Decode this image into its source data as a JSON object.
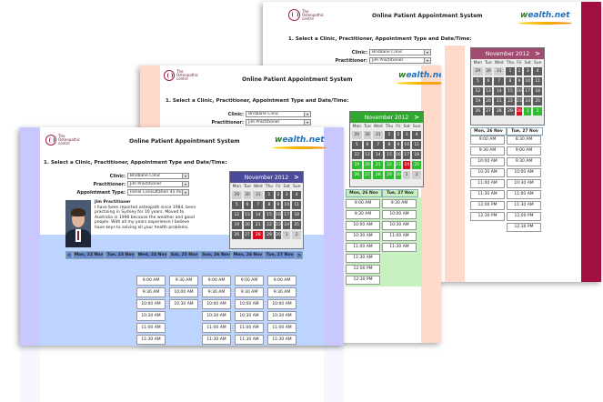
{
  "app": {
    "logo_line1": "The",
    "logo_line2": "Osteopathic",
    "logo_line3": "centre",
    "title": "Online Patient Appointment System",
    "brand_w": "w",
    "brand_rest": "ealth.net",
    "heading": "1. Select a Clinic, Practitioner, Appointment Type and Date/Time:"
  },
  "form": {
    "clinic_label": "Clinic:",
    "clinic_value": "Brisbane Clinic",
    "practitioner_label": "Practitioner:",
    "practitioner_value": "Jim Practitioner",
    "appt_type_label": "Appointment Type:",
    "appt_type_value": "Initial Consultation 45 min",
    "arrow": "▾"
  },
  "calendar": {
    "month": "November 2012",
    "next": ">",
    "days": [
      "Mon",
      "Tue",
      "Wed",
      "Thu",
      "Fri",
      "Sat",
      "Sun"
    ],
    "weeks": [
      [
        "29",
        "30",
        "31",
        "1",
        "2",
        "3",
        "4"
      ],
      [
        "5",
        "6",
        "7",
        "8",
        "9",
        "10",
        "11"
      ],
      [
        "12",
        "13",
        "14",
        "15",
        "16",
        "17",
        "18"
      ],
      [
        "19",
        "20",
        "21",
        "22",
        "23",
        "24",
        "25"
      ],
      [
        "26",
        "27",
        "28",
        "29",
        "30",
        "1",
        "2"
      ]
    ]
  },
  "practitioner": {
    "name": "Jim Practitioner",
    "bio": "I have been reported osteopath since 1984, been practising in Sydney for 10 years. Moved to Australia in 1996 because the weather and good people. With all my years experience I believe have keys to solving all your health problems."
  },
  "schedule": {
    "prev": "<",
    "next": ">",
    "days": [
      "Mon, 22 Nov",
      "Tue, 23 Nov",
      "Wed, 24 Nov",
      "Sat, 25 Nov",
      "Sun, 26 Nov",
      "Mon, 26 Nov",
      "Tue, 27 Nov"
    ],
    "front_columns": [
      [
        "9:00 AM",
        "9:30 AM",
        "10:00 AM",
        "10:30 AM",
        "11:00 AM",
        "11:30 AM"
      ],
      [
        "9:30 AM",
        "10:00 AM",
        "10:30 AM"
      ],
      [
        "9:00 AM",
        "9:30 AM",
        "10:00 AM",
        "10:30 AM",
        "11:00 AM",
        "11:30 AM",
        "12:00 PM",
        "12:30 PM"
      ],
      [
        "9:00 AM",
        "9:30 AM",
        "10:00 AM",
        "10:30 AM",
        "11:00 AM",
        "11:30 AM",
        "12:00 PM"
      ],
      [
        "9:00 AM",
        "9:30 AM",
        "10:00 AM",
        "10:30 AM",
        "11:00 AM",
        "11:30 AM",
        "12:00 PM",
        "12:30 PM"
      ]
    ],
    "middle_columns": [
      [
        "9:00 AM",
        "9:30 AM",
        "10:00 AM",
        "10:30 AM",
        "11:00 AM",
        "11:30 AM",
        "12:00 PM",
        "12:30 PM"
      ],
      [
        "9:30 AM",
        "10:00 AM",
        "10:30 AM",
        "11:00 AM",
        "11:30 AM"
      ]
    ],
    "back_columns": [
      [
        "9:00 AM",
        "9:30 AM",
        "10:00 AM",
        "10:30 AM",
        "11:00 AM",
        "11:30 AM",
        "12:00 PM",
        "12:30 PM"
      ],
      [
        "8:30 AM",
        "9:00 AM",
        "9:30 AM",
        "10:00 AM",
        "10:30 AM",
        "11:00 AM",
        "11:30 AM",
        "12:00 PM",
        "12:30 PM"
      ],
      [
        "9:00 AM",
        "9:30 AM",
        "10:00 AM",
        "10:30 AM",
        "11:00 AM",
        "11:30 AM",
        "12:00 PM",
        "12:30 PM"
      ]
    ],
    "back_tabs": [
      "Mon, 26 Nov",
      "Tue, 27 Nov"
    ],
    "middle_tabs": [
      "Mon, 26 Nov",
      "Tue, 27 Nov"
    ]
  },
  "colors": {
    "back_side": "#a01040",
    "back_top": "#ffd9c9",
    "back_cal_head": "#a04c70",
    "mid_side": "#ffd9c9",
    "mid_cal_head": "#2ea82e",
    "front_side": "#c8c8ff",
    "front_cal_head": "#4b4b9b",
    "front_tab": "#6b8bd3"
  }
}
